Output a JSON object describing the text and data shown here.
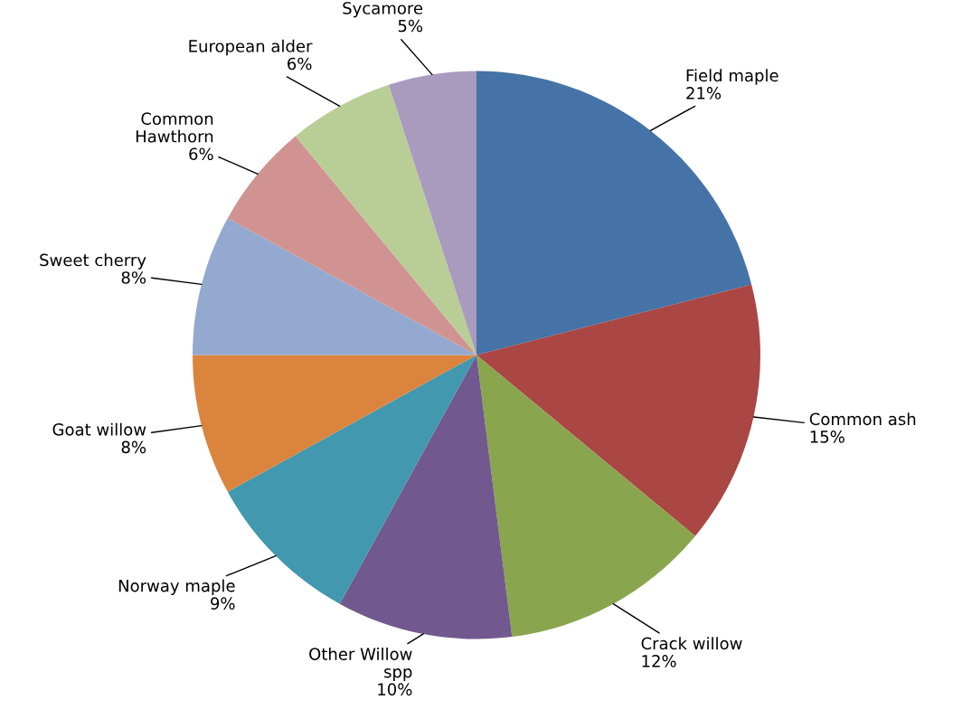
{
  "chart_data": {
    "type": "pie",
    "categories": [
      "Field maple",
      "Common ash",
      "Crack willow",
      "Other Willow\nspp",
      "Norway maple",
      "Goat willow",
      "Sweet cherry",
      "Common\nHawthorn",
      "European alder",
      "Sycamore"
    ],
    "values": [
      21,
      15,
      12,
      10,
      9,
      8,
      8,
      6,
      6,
      5
    ],
    "colors": [
      "#4573a7",
      "#aa4644",
      "#89a54e",
      "#71588f",
      "#4198af",
      "#db843d",
      "#93a9cf",
      "#d19392",
      "#b9cd96",
      "#a99bbd"
    ],
    "value_labels": [
      "21%",
      "15%",
      "12%",
      "10%",
      "9%",
      "8%",
      "8%",
      "6%",
      "6%",
      "5%"
    ]
  }
}
